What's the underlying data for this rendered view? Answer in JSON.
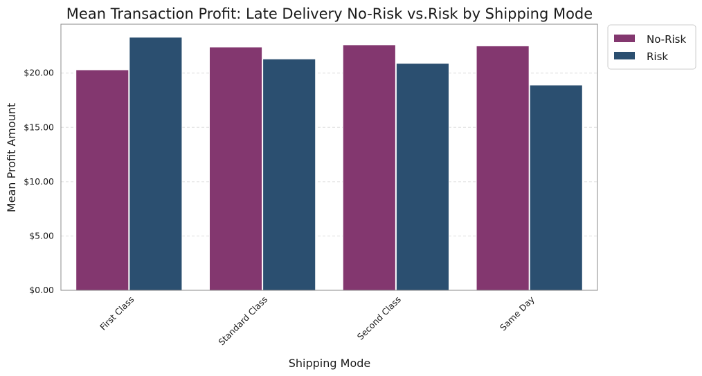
{
  "chart_data": {
    "type": "bar",
    "title": "Mean Transaction Profit: Late Delivery No-Risk vs.Risk by Shipping Mode",
    "xlabel": "Shipping Mode",
    "ylabel": "Mean Profit Amount",
    "categories": [
      "First Class",
      "Standard Class",
      "Second Class",
      "Same Day"
    ],
    "series": [
      {
        "name": "No-Risk",
        "color": "#83376f",
        "values": [
          20.3,
          22.4,
          22.6,
          22.5
        ]
      },
      {
        "name": "Risk",
        "color": "#2b4f70",
        "values": [
          23.3,
          21.3,
          20.9,
          18.9
        ]
      }
    ],
    "ylim": [
      0,
      24.5
    ],
    "yticks": [
      0,
      5,
      10,
      15,
      20
    ],
    "ytick_labels": [
      "$0.00",
      "$5.00",
      "$10.00",
      "$15.00",
      "$20.00"
    ],
    "grid": "y-dashed",
    "legend_position": "outside-top-right",
    "x_tick_rotation": "45-degrees"
  }
}
